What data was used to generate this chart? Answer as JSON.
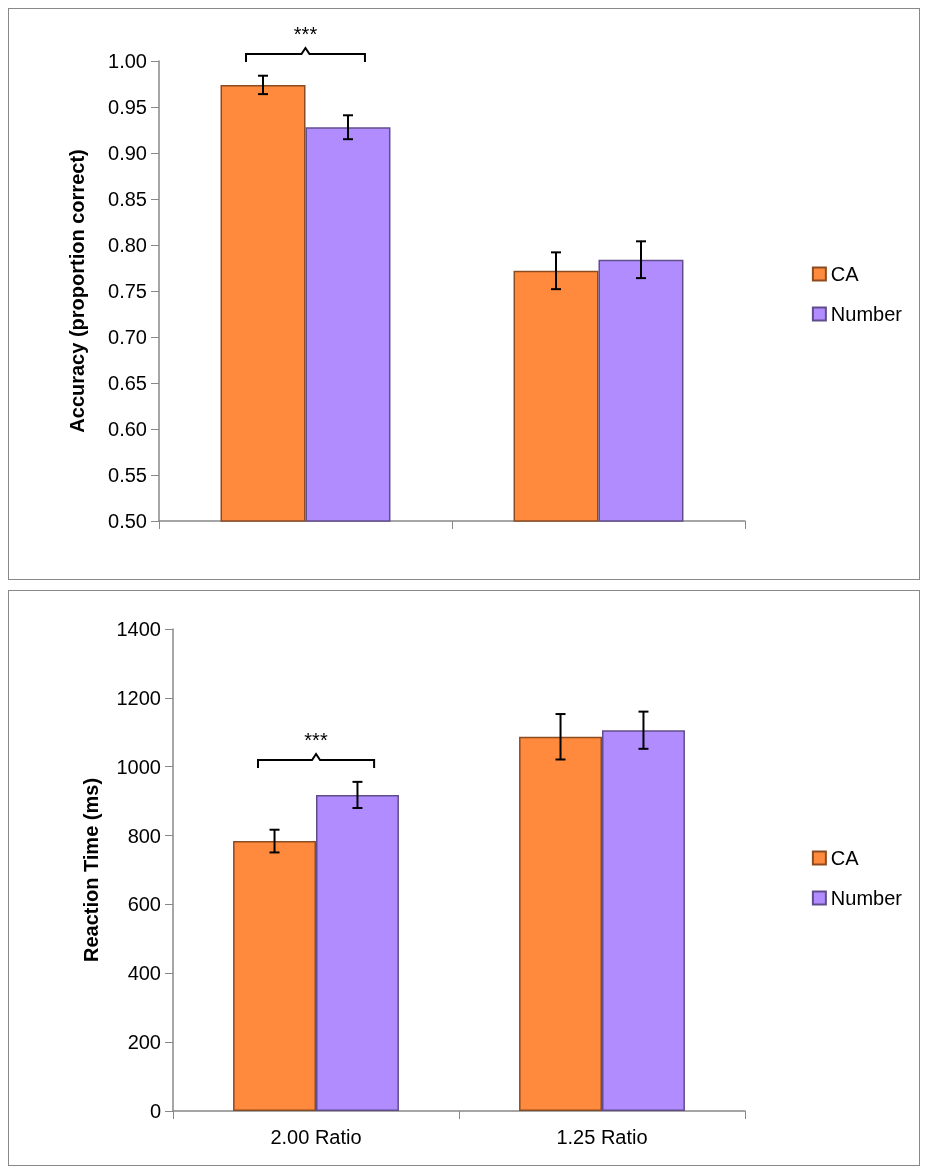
{
  "chart_data": [
    {
      "type": "bar",
      "ylabel": "Accuracy (proportion correct)",
      "categories": [
        null,
        null
      ],
      "series": [
        {
          "name": "CA",
          "color": "#ff8a3d",
          "values": [
            0.974,
            0.772
          ],
          "errors": [
            0.01,
            0.02
          ]
        },
        {
          "name": "Number",
          "color": "#b08cff",
          "values": [
            0.928,
            0.784
          ],
          "errors": [
            0.013,
            0.02
          ]
        }
      ],
      "ylim": [
        0.5,
        1.0
      ],
      "yticks": [
        {
          "value": 0.5,
          "label": "0.50"
        },
        {
          "value": 0.55,
          "label": "0.55"
        },
        {
          "value": 0.6,
          "label": "0.60"
        },
        {
          "value": 0.65,
          "label": "0.65"
        },
        {
          "value": 0.7,
          "label": "0.70"
        },
        {
          "value": 0.75,
          "label": "0.75"
        },
        {
          "value": 0.8,
          "label": "0.80"
        },
        {
          "value": 0.85,
          "label": "0.85"
        },
        {
          "value": 0.9,
          "label": "0.90"
        },
        {
          "value": 0.95,
          "label": "0.95"
        },
        {
          "value": 1.0,
          "label": "1.00"
        }
      ],
      "annotations": [
        "***"
      ],
      "grid": false,
      "legend": "right"
    },
    {
      "type": "bar",
      "ylabel": "Reaction Time (ms)",
      "categories": [
        "2.00 Ratio",
        "1.25 Ratio"
      ],
      "series": [
        {
          "name": "CA",
          "color": "#ff8a3d",
          "values": [
            784,
            1087
          ],
          "errors": [
            33,
            66
          ]
        },
        {
          "name": "Number",
          "color": "#b08cff",
          "values": [
            918,
            1106
          ],
          "errors": [
            38,
            54
          ]
        }
      ],
      "ylim": [
        0,
        1400
      ],
      "yticks": [
        0,
        200,
        400,
        600,
        800,
        1000,
        1200,
        1400
      ],
      "annotations": [
        "***"
      ],
      "grid": false,
      "legend": "right"
    }
  ]
}
